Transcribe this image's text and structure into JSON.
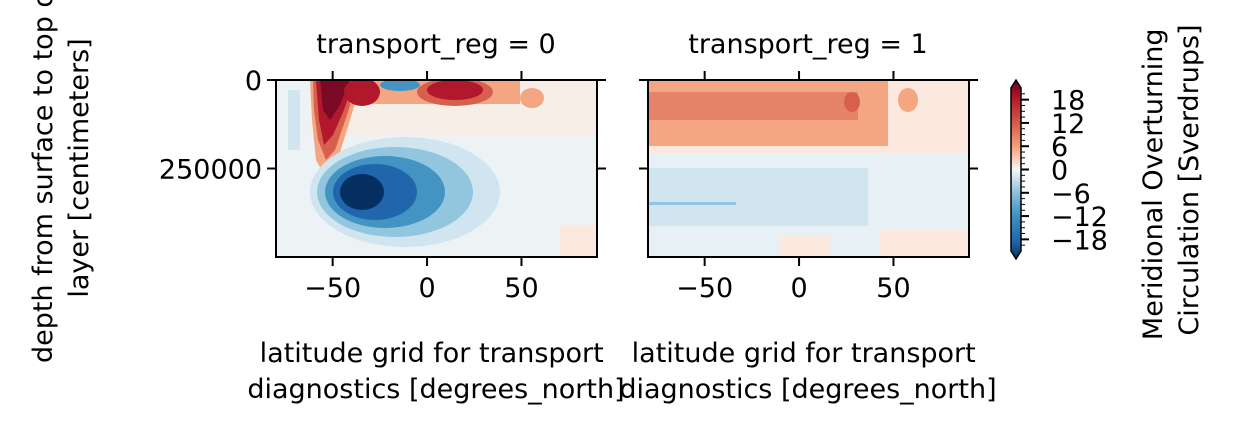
{
  "chart_data": {
    "type": "heatmap",
    "variable": "Meridional Overturning Circulation",
    "facet_variable": "transport_reg",
    "facets": [
      {
        "title": "transport_reg = 0",
        "summary": {
          "max_positive_core": 18,
          "min_negative_core": -18
        }
      },
      {
        "title": "transport_reg = 1",
        "summary": {
          "max_positive_core": 12,
          "min_negative_core": -6
        }
      }
    ],
    "xlabel": [
      "latitude grid for transport",
      "diagnostics [degrees_north]"
    ],
    "ylabel": [
      "depth from surface to top of",
      "layer [centimeters]"
    ],
    "xlim": [
      -80,
      90
    ],
    "ylim": [
      500000,
      0
    ],
    "x_ticks": [
      -50,
      0,
      50
    ],
    "x_tick_labels": [
      "−50",
      "0",
      "50"
    ],
    "y_ticks": [
      0,
      250000
    ],
    "y_tick_labels": [
      "0",
      "250000"
    ],
    "colorbar": {
      "label": [
        "Meridional Overturning",
        "Circulation [Sverdrups]"
      ],
      "cmap": "RdBu_r",
      "range": [
        -21,
        21
      ],
      "extend": "both",
      "ticks": [
        18,
        12,
        6,
        0,
        -6,
        -12,
        -18
      ],
      "tick_labels": [
        "18",
        "12",
        "6",
        "0",
        "−6",
        "−12",
        "−18"
      ]
    },
    "grid": false
  }
}
